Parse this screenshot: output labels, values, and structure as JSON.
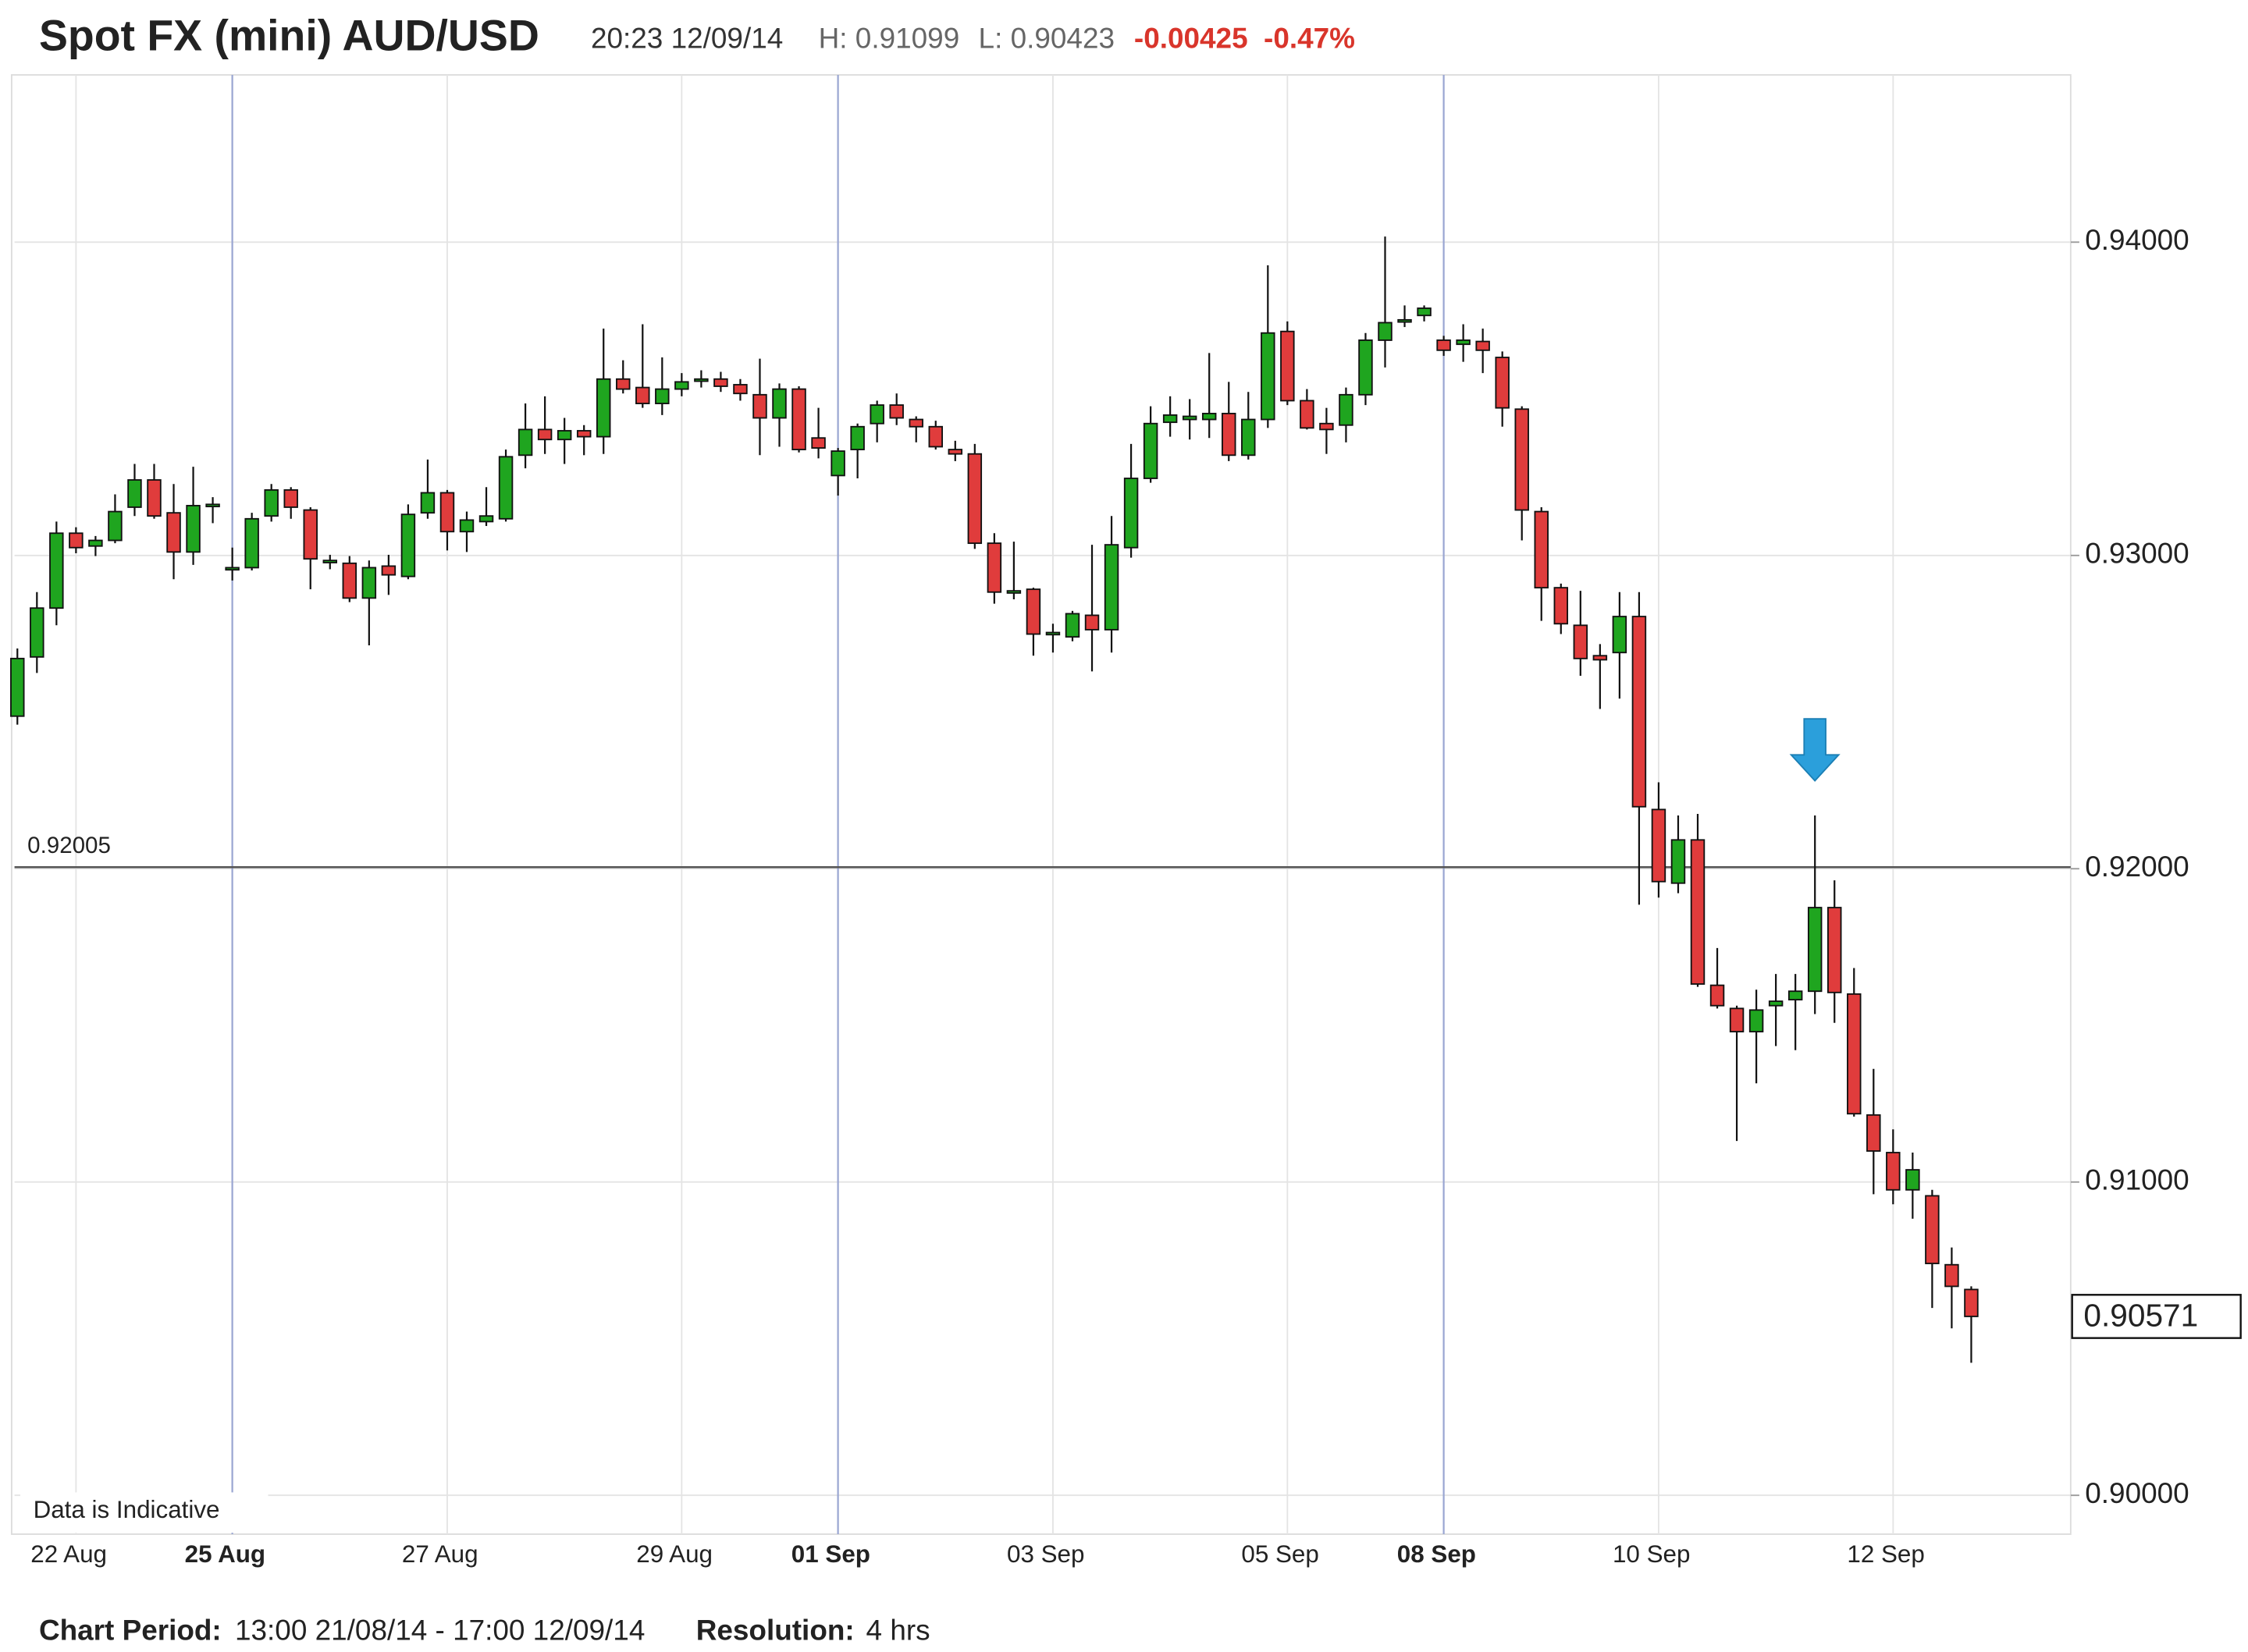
{
  "header": {
    "title": "Spot FX (mini) AUD/USD",
    "timestamp": "20:23 12/09/14",
    "high": "H: 0.91099",
    "low": "L: 0.90423",
    "change": "-0.00425",
    "change_pct": "-0.47%"
  },
  "footer": {
    "period_label": "Chart Period:",
    "period": "13:00 21/08/14 - 17:00 12/09/14",
    "resolution_label": "Resolution:",
    "resolution": "4 hrs"
  },
  "chart_data": {
    "type": "candlestick",
    "annotation": "Data is Indicative",
    "categories": [
      null,
      null,
      null,
      "22 Aug",
      null,
      null,
      null,
      null,
      null,
      null,
      null,
      "25 Aug",
      null,
      null,
      null,
      null,
      null,
      null,
      null,
      null,
      null,
      null,
      "27 Aug",
      null,
      null,
      null,
      null,
      null,
      null,
      null,
      null,
      null,
      null,
      null,
      "29 Aug",
      null,
      null,
      null,
      null,
      null,
      null,
      null,
      "01 Sep",
      null,
      null,
      null,
      null,
      null,
      null,
      null,
      null,
      null,
      null,
      "03 Sep",
      null,
      null,
      null,
      null,
      null,
      null,
      null,
      null,
      null,
      null,
      null,
      "05 Sep",
      null,
      null,
      null,
      null,
      null,
      null,
      null,
      "08 Sep",
      null,
      null,
      null,
      null,
      null,
      null,
      null,
      null,
      null,
      null,
      "10 Sep",
      null,
      null,
      null,
      null,
      null,
      null,
      null,
      null,
      null,
      null,
      null,
      "12 Sep",
      null,
      null,
      null,
      null
    ],
    "week_starts": [
      "25 Aug",
      "01 Sep",
      "08 Sep"
    ],
    "open": [
      0.92487,
      0.92676,
      0.92832,
      0.93071,
      0.9303,
      0.93048,
      0.93154,
      0.93241,
      0.93136,
      0.93011,
      0.93163,
      0.92956,
      0.92961,
      0.93126,
      0.93209,
      0.93145,
      0.92984,
      0.92975,
      0.92864,
      0.92966,
      0.92933,
      0.93136,
      0.932,
      0.93076,
      0.93108,
      0.93117,
      0.9332,
      0.93402,
      0.9337,
      0.93398,
      0.93379,
      0.93563,
      0.93536,
      0.93485,
      0.93531,
      0.93559,
      0.93563,
      0.93545,
      0.93513,
      0.93439,
      0.93531,
      0.93375,
      0.93255,
      0.93338,
      0.93421,
      0.9348,
      0.93434,
      0.93411,
      0.93338,
      0.93324,
      0.93039,
      0.92887,
      0.92892,
      0.92749,
      0.9274,
      0.92809,
      0.92763,
      0.93025,
      0.93246,
      0.93425,
      0.93434,
      0.93434,
      0.93453,
      0.9332,
      0.93434,
      0.93715,
      0.93494,
      0.93421,
      0.93416,
      0.93513,
      0.93687,
      0.93752,
      0.93766,
      0.93687,
      0.93674,
      0.93683,
      0.93632,
      0.93467,
      0.9314,
      0.92897,
      0.92777,
      0.9268,
      0.9269,
      0.92805,
      0.92189,
      0.91954,
      0.92092,
      0.91628,
      0.91554,
      0.9148,
      0.91563,
      0.91582,
      0.91609,
      0.91876,
      0.916,
      0.91214,
      0.91094,
      0.90975,
      0.90956,
      0.90736,
      0.90657
    ],
    "high": [
      0.92703,
      0.92883,
      0.93108,
      0.9309,
      0.93062,
      0.93195,
      0.93292,
      0.93292,
      0.93228,
      0.93283,
      0.93186,
      0.93025,
      0.93136,
      0.93228,
      0.93218,
      0.93154,
      0.93002,
      0.92998,
      0.92984,
      0.93002,
      0.93163,
      0.93306,
      0.93209,
      0.9314,
      0.93218,
      0.93338,
      0.93485,
      0.93508,
      0.93439,
      0.93416,
      0.93724,
      0.93623,
      0.93738,
      0.93632,
      0.93582,
      0.93591,
      0.93586,
      0.93563,
      0.93628,
      0.93549,
      0.9354,
      0.93471,
      0.93343,
      0.93421,
      0.93494,
      0.93517,
      0.93444,
      0.9343,
      0.93366,
      0.93356,
      0.93071,
      0.93044,
      0.92897,
      0.92782,
      0.92823,
      0.93034,
      0.93126,
      0.93356,
      0.93476,
      0.93508,
      0.93499,
      0.93646,
      0.93554,
      0.93522,
      0.93926,
      0.93747,
      0.93531,
      0.93471,
      0.93536,
      0.9371,
      0.94018,
      0.93798,
      0.93798,
      0.93701,
      0.93738,
      0.93724,
      0.93651,
      0.93476,
      0.93154,
      0.9291,
      0.92887,
      0.92717,
      0.92883,
      0.92883,
      0.92276,
      0.9217,
      0.92175,
      0.91747,
      0.91563,
      0.91614,
      0.91664,
      0.91664,
      0.9217,
      0.91963,
      0.91683,
      0.91361,
      0.91168,
      0.91094,
      0.90975,
      0.90791,
      0.90667
    ],
    "low": [
      0.9246,
      0.92625,
      0.92777,
      0.93007,
      0.92998,
      0.93039,
      0.93126,
      0.93117,
      0.92924,
      0.9297,
      0.93103,
      0.9292,
      0.92952,
      0.93108,
      0.93117,
      0.92892,
      0.92956,
      0.92851,
      0.92713,
      0.92874,
      0.92924,
      0.93117,
      0.93016,
      0.93011,
      0.93094,
      0.93108,
      0.93278,
      0.93324,
      0.93292,
      0.9332,
      0.93324,
      0.93517,
      0.93471,
      0.93448,
      0.93508,
      0.93536,
      0.93522,
      0.93494,
      0.9332,
      0.93347,
      0.93329,
      0.9331,
      0.93191,
      0.93246,
      0.93361,
      0.93416,
      0.93361,
      0.93338,
      0.93301,
      0.93021,
      0.92846,
      0.9286,
      0.9268,
      0.9269,
      0.92726,
      0.9263,
      0.9269,
      0.92993,
      0.93232,
      0.93379,
      0.9337,
      0.93375,
      0.93301,
      0.93306,
      0.93407,
      0.9348,
      0.93402,
      0.93324,
      0.93361,
      0.9348,
      0.936,
      0.93729,
      0.93747,
      0.93637,
      0.93618,
      0.93582,
      0.93411,
      0.93048,
      0.92791,
      0.92749,
      0.92616,
      0.9251,
      0.92543,
      0.91885,
      0.91908,
      0.91922,
      0.91623,
      0.91554,
      0.91131,
      0.91315,
      0.91434,
      0.91421,
      0.91536,
      0.91508,
      0.91209,
      0.90961,
      0.90929,
      0.90883,
      0.90598,
      0.90533,
      0.90423
    ],
    "close": [
      0.92671,
      0.92832,
      0.93071,
      0.93025,
      0.93048,
      0.9314,
      0.93241,
      0.93126,
      0.93011,
      0.93159,
      0.93163,
      0.92961,
      0.93117,
      0.93209,
      0.93154,
      0.92989,
      0.92984,
      0.92864,
      0.92961,
      0.92938,
      0.93131,
      0.932,
      0.93076,
      0.93113,
      0.93126,
      0.93315,
      0.93402,
      0.9337,
      0.93398,
      0.93379,
      0.93563,
      0.93531,
      0.93485,
      0.93531,
      0.93554,
      0.93563,
      0.9354,
      0.93517,
      0.93439,
      0.93531,
      0.93338,
      0.93343,
      0.93333,
      0.93411,
      0.9348,
      0.93439,
      0.93411,
      0.93347,
      0.93324,
      0.93039,
      0.92883,
      0.92887,
      0.92749,
      0.92754,
      0.92814,
      0.92763,
      0.93034,
      0.93246,
      0.93421,
      0.93448,
      0.93444,
      0.93453,
      0.9332,
      0.93434,
      0.9371,
      0.93494,
      0.93407,
      0.93402,
      0.93513,
      0.93687,
      0.93743,
      0.93752,
      0.93789,
      0.93655,
      0.93687,
      0.93655,
      0.93471,
      0.93145,
      0.92897,
      0.92782,
      0.92671,
      0.92667,
      0.92805,
      0.92198,
      0.91959,
      0.92092,
      0.91632,
      0.91563,
      0.9148,
      0.91549,
      0.91577,
      0.91609,
      0.91876,
      0.91605,
      0.91218,
      0.91099,
      0.90975,
      0.91039,
      0.9074,
      0.90667,
      0.90571
    ],
    "last_price_label": "0.90571",
    "up_color": "#1fa51f",
    "down_color": "#e03c3c",
    "reference_line": {
      "value": 0.92005,
      "label": "0.92005"
    },
    "ylim": [
      0.89876,
      0.9452
    ],
    "yticks": [
      {
        "value": 0.9,
        "label": "0.90000"
      },
      {
        "value": 0.91,
        "label": "0.91000"
      },
      {
        "value": 0.92,
        "label": "0.92000"
      },
      {
        "value": 0.93,
        "label": "0.93000"
      },
      {
        "value": 0.94,
        "label": "0.94000"
      }
    ],
    "grid": true
  }
}
